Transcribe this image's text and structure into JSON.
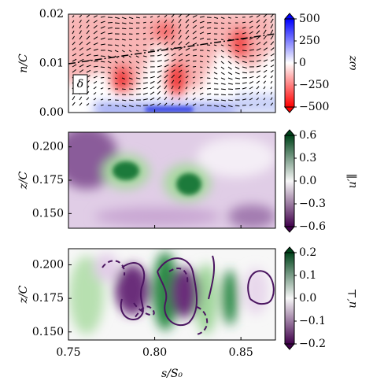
{
  "chart_data": [
    {
      "type": "heatmap",
      "ylabel": "n/C",
      "annotation": "δ",
      "ylim": [
        0,
        0.02
      ],
      "yticks": [
        {
          "value": 0,
          "label": "0.00"
        },
        {
          "value": 0.01,
          "label": "0.01"
        },
        {
          "value": 0.02,
          "label": "0.02"
        }
      ],
      "colorbar": {
        "label": "ωz",
        "lim": [
          -500,
          500
        ],
        "colors": [
          "#ff0000",
          "#ffffff",
          "#0000ff"
        ],
        "ticks": [
          {
            "value": -500,
            "label": "−500"
          },
          {
            "value": -250,
            "label": "−250"
          },
          0,
          250,
          500
        ]
      }
    },
    {
      "type": "heatmap",
      "ylabel": "z/C",
      "ylim": [
        0.139,
        0.211
      ],
      "yticks": [
        {
          "value": 0.15,
          "label": "0.150"
        },
        {
          "value": 0.175,
          "label": "0.175"
        },
        {
          "value": 0.2,
          "label": "0.200"
        }
      ],
      "colorbar": {
        "label": "u′∥",
        "lim": [
          -0.6,
          0.6
        ],
        "colors": [
          "#40004b",
          "#f7f7f7",
          "#00441b"
        ],
        "ticks": [
          {
            "value": -0.6,
            "label": "−0.6"
          },
          {
            "value": -0.3,
            "label": "−0.3"
          },
          {
            "value": 0,
            "label": "0.0"
          },
          0.3,
          0.6
        ]
      }
    },
    {
      "type": "heatmap",
      "ylabel": "z/C",
      "xlabel": "s/S₀",
      "xlim": [
        0.75,
        0.87
      ],
      "xticks": [
        0.75,
        {
          "value": 0.8,
          "label": "0.80"
        },
        0.85
      ],
      "ylim": [
        0.144,
        0.212
      ],
      "yticks": [
        {
          "value": 0.15,
          "label": "0.150"
        },
        {
          "value": 0.175,
          "label": "0.175"
        },
        {
          "value": 0.2,
          "label": "0.200"
        }
      ],
      "colorbar": {
        "label": "u′⊥",
        "lim": [
          -0.2,
          0.2
        ],
        "colors": [
          "#40004b",
          "#f7f7f7",
          "#00441b"
        ],
        "ticks": [
          {
            "value": -0.2,
            "label": "−0.2"
          },
          {
            "value": -0.1,
            "label": "−0.1"
          },
          {
            "value": 0,
            "label": "0.0"
          },
          0.1,
          0.2
        ]
      }
    }
  ]
}
